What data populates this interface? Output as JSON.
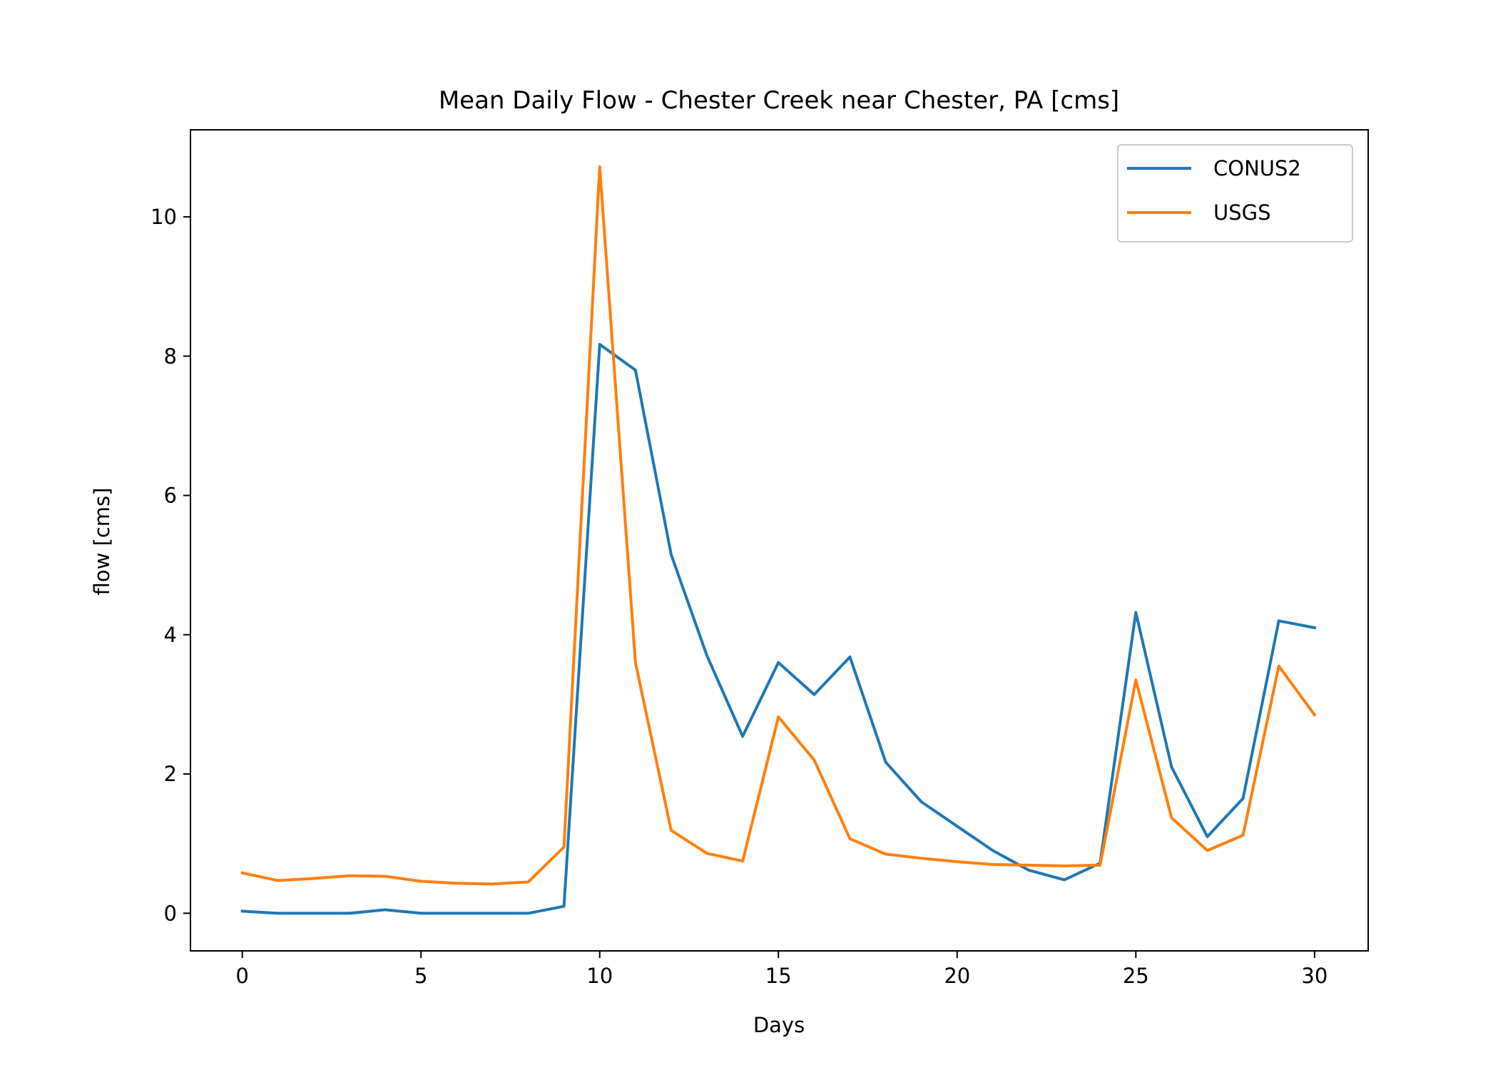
{
  "chart_data": {
    "type": "line",
    "title": "Mean Daily Flow - Chester Creek near Chester, PA [cms]",
    "xlabel": "Days",
    "ylabel": "flow [cms]",
    "xlim": [
      -1.45,
      31.5
    ],
    "ylim": [
      -0.54,
      11.25
    ],
    "xticks": [
      0,
      5,
      10,
      15,
      20,
      25,
      30
    ],
    "yticks": [
      0,
      2,
      4,
      6,
      8,
      10
    ],
    "grid": false,
    "legend_position": "top-right",
    "x": [
      0,
      1,
      2,
      3,
      4,
      5,
      6,
      7,
      8,
      9,
      10,
      11,
      12,
      13,
      14,
      15,
      16,
      17,
      18,
      19,
      20,
      21,
      22,
      23,
      24,
      25,
      26,
      27,
      28,
      29,
      30
    ],
    "series": [
      {
        "name": "CONUS2",
        "color": "#1f77b4",
        "values": [
          0.03,
          0.0,
          0.0,
          0.0,
          0.05,
          0.0,
          0.0,
          0.0,
          0.0,
          0.1,
          8.17,
          7.8,
          5.15,
          3.7,
          2.54,
          3.6,
          3.14,
          3.68,
          2.17,
          1.6,
          1.25,
          0.9,
          0.62,
          0.48,
          0.72,
          4.32,
          2.1,
          1.1,
          1.65,
          4.2,
          4.1
        ]
      },
      {
        "name": "USGS",
        "color": "#ff7f0e",
        "values": [
          0.58,
          0.47,
          0.5,
          0.54,
          0.53,
          0.46,
          0.43,
          0.42,
          0.45,
          0.95,
          10.72,
          3.6,
          1.19,
          0.86,
          0.75,
          2.82,
          2.2,
          1.07,
          0.85,
          0.79,
          0.74,
          0.7,
          0.69,
          0.68,
          0.69,
          3.35,
          1.37,
          0.9,
          1.12,
          3.55,
          2.85
        ]
      }
    ]
  }
}
